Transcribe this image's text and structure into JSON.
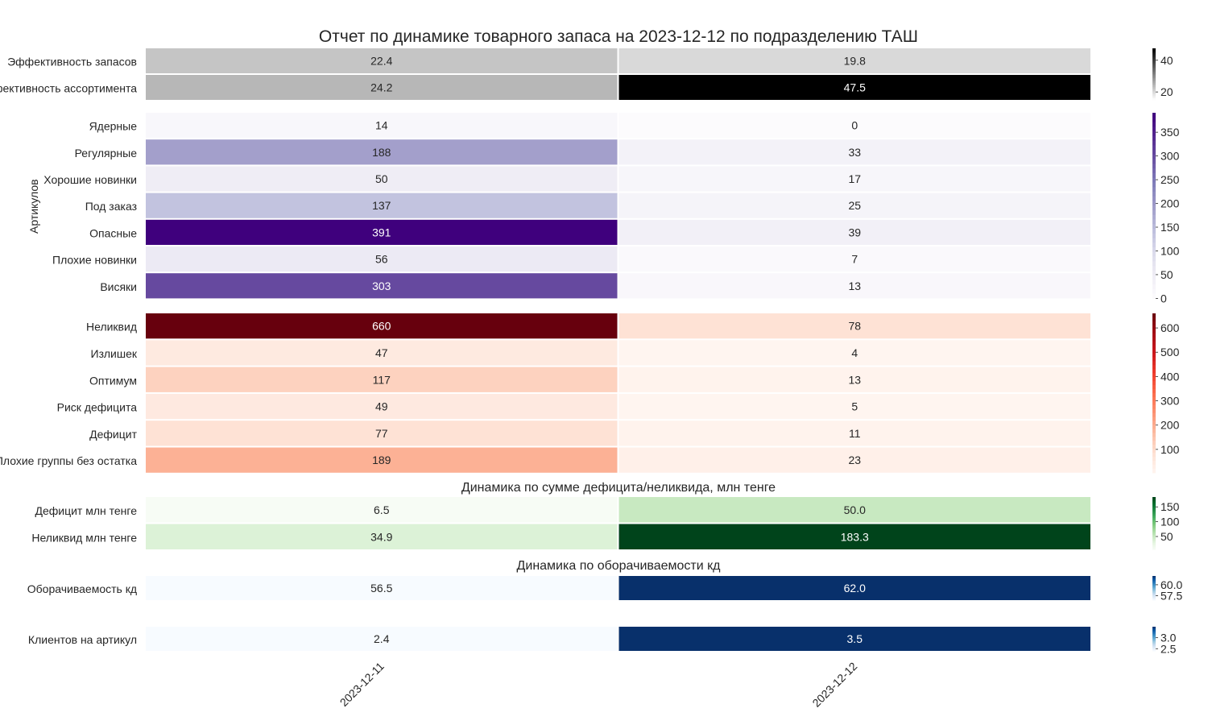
{
  "chart_data": {
    "type": "heatmap",
    "title": "Отчет по динамике товарного запаса на 2023-12-12 по подразделению ТАШ",
    "columns": [
      "2023-12-11",
      "2023-12-12"
    ],
    "panels": [
      {
        "id": "efficiency",
        "subtitle": "",
        "ylabel": "",
        "colormap": "Greys",
        "colorbar_ticks": [
          20,
          40
        ],
        "vmin": 15,
        "vmax": 47.5,
        "rows": [
          {
            "label": "Эффективность запасов",
            "values": [
              22.4,
              19.8
            ],
            "display": [
              "22.4",
              "19.8"
            ]
          },
          {
            "label": "Эффективность ассортимента",
            "values": [
              24.2,
              47.5
            ],
            "display": [
              "24.2",
              "47.5"
            ]
          }
        ]
      },
      {
        "id": "articles",
        "subtitle": "",
        "ylabel": "Артикулов",
        "colormap": "Purples",
        "colorbar_ticks": [
          0,
          50,
          100,
          150,
          200,
          250,
          300,
          350
        ],
        "vmin": 0,
        "vmax": 391,
        "rows": [
          {
            "label": "Ядерные",
            "values": [
              14,
              0
            ],
            "display": [
              "14",
              "0"
            ]
          },
          {
            "label": "Регулярные",
            "values": [
              188,
              33
            ],
            "display": [
              "188",
              "33"
            ]
          },
          {
            "label": "Хорошие новинки",
            "values": [
              50,
              17
            ],
            "display": [
              "50",
              "17"
            ]
          },
          {
            "label": "Под заказ",
            "values": [
              137,
              25
            ],
            "display": [
              "137",
              "25"
            ]
          },
          {
            "label": "Опасные",
            "values": [
              391,
              39
            ],
            "display": [
              "391",
              "39"
            ]
          },
          {
            "label": "Плохие новинки",
            "values": [
              56,
              7
            ],
            "display": [
              "56",
              "7"
            ]
          },
          {
            "label": "Висяки",
            "values": [
              303,
              13
            ],
            "display": [
              "303",
              "13"
            ]
          }
        ]
      },
      {
        "id": "stock-status",
        "subtitle": "",
        "ylabel": "",
        "colormap": "Reds",
        "colorbar_ticks": [
          100,
          200,
          300,
          400,
          500,
          600
        ],
        "vmin": 4,
        "vmax": 660,
        "rows": [
          {
            "label": "Неликвид",
            "values": [
              660,
              78
            ],
            "display": [
              "660",
              "78"
            ]
          },
          {
            "label": "Излишек",
            "values": [
              47,
              4
            ],
            "display": [
              "47",
              "4"
            ]
          },
          {
            "label": "Оптимум",
            "values": [
              117,
              13
            ],
            "display": [
              "117",
              "13"
            ]
          },
          {
            "label": "Риск дефицита",
            "values": [
              49,
              5
            ],
            "display": [
              "49",
              "5"
            ]
          },
          {
            "label": "Дефицит",
            "values": [
              77,
              11
            ],
            "display": [
              "77",
              "11"
            ]
          },
          {
            "label": "Плохие группы без остатка",
            "values": [
              189,
              23
            ],
            "display": [
              "189",
              "23"
            ]
          }
        ]
      },
      {
        "id": "money",
        "subtitle": "Динамика по сумме дефицита/неликвида, млн тенге",
        "ylabel": "",
        "colormap": "Greens",
        "colorbar_ticks": [
          50,
          100,
          150
        ],
        "vmin": 6.5,
        "vmax": 183.3,
        "rows": [
          {
            "label": "Дефицит млн тенге",
            "values": [
              6.5,
              50.0
            ],
            "display": [
              "6.5",
              "50.0"
            ]
          },
          {
            "label": "Неликвид млн тенге",
            "values": [
              34.9,
              183.3
            ],
            "display": [
              "34.9",
              "183.3"
            ]
          }
        ]
      },
      {
        "id": "turnover",
        "subtitle": "Динамика по оборачиваемости кд",
        "ylabel": "",
        "colormap": "Blues",
        "colorbar_ticks": [
          57.5,
          60.0
        ],
        "colorbar_tick_labels": [
          "57.5",
          "60.0"
        ],
        "vmin": 56.5,
        "vmax": 62.0,
        "rows": [
          {
            "label": "Оборачиваемость кд",
            "values": [
              56.5,
              62.0
            ],
            "display": [
              "56.5",
              "62.0"
            ]
          }
        ]
      },
      {
        "id": "clients",
        "subtitle": "",
        "ylabel": "",
        "colormap": "Blues",
        "colorbar_ticks": [
          2.5,
          3.0
        ],
        "colorbar_tick_labels": [
          "2.5",
          "3.0"
        ],
        "vmin": 2.4,
        "vmax": 3.5,
        "rows": [
          {
            "label": "Клиентов на артикул",
            "values": [
              2.4,
              3.5
            ],
            "display": [
              "2.4",
              "3.5"
            ]
          }
        ]
      }
    ]
  },
  "colors": {
    "Greys": [
      "#ffffff",
      "#000000"
    ],
    "Purples": [
      "#fcfbfd",
      "#efedf5",
      "#dadaeb",
      "#bcbddc",
      "#9e9ac8",
      "#807dba",
      "#6a51a3",
      "#54278f",
      "#3f007d"
    ],
    "Reds": [
      "#fff5f0",
      "#fee0d2",
      "#fcbba1",
      "#fc9272",
      "#fb6a4a",
      "#ef3b2c",
      "#cb181d",
      "#a50f15",
      "#67000d"
    ],
    "Greens": [
      "#f7fcf5",
      "#e5f5e0",
      "#c7e9c0",
      "#a1d99b",
      "#74c476",
      "#41ab5d",
      "#238b45",
      "#006d2c",
      "#00441b"
    ],
    "Blues": [
      "#f7fbff",
      "#deebf7",
      "#c6dbef",
      "#9ecae1",
      "#6baed6",
      "#4292c6",
      "#2171b5",
      "#08519c",
      "#08306b"
    ]
  }
}
